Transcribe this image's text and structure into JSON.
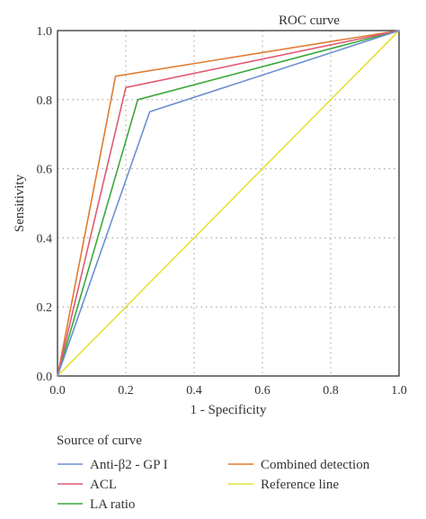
{
  "chart_data": {
    "type": "line",
    "title": "ROC curve",
    "xlabel": "1 - Specificity",
    "ylabel": "Sensitivity",
    "xlim": [
      0.0,
      1.0
    ],
    "ylim": [
      0.0,
      1.0
    ],
    "xticks": [
      "0.0",
      "0.2",
      "0.4",
      "0.6",
      "0.8",
      "1.0"
    ],
    "yticks": [
      "0.0",
      "0.2",
      "0.4",
      "0.6",
      "0.8",
      "1.0"
    ],
    "grid": true,
    "legend_title": "Source of curve",
    "legend_position": "bottom",
    "series": [
      {
        "name": "Anti-β2 - GP I",
        "color": "#6a8fd0",
        "x": [
          0,
          0.27,
          1
        ],
        "y": [
          0,
          0.765,
          1
        ]
      },
      {
        "name": "ACL",
        "color": "#e05a73",
        "x": [
          0,
          0.2,
          1
        ],
        "y": [
          0,
          0.835,
          1
        ]
      },
      {
        "name": "LA ratio",
        "color": "#3aa83a",
        "x": [
          0,
          0.235,
          1
        ],
        "y": [
          0,
          0.8,
          1
        ]
      },
      {
        "name": "Combined detection",
        "color": "#e07b2e",
        "x": [
          0,
          0.17,
          1
        ],
        "y": [
          0,
          0.868,
          1
        ]
      },
      {
        "name": "Reference line",
        "color": "#e8e03a",
        "x": [
          0,
          1
        ],
        "y": [
          0,
          1
        ]
      }
    ]
  }
}
